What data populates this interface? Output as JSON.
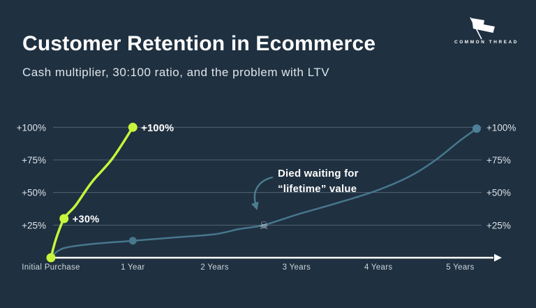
{
  "header": {
    "title": "Customer Retention in Ecommerce",
    "subtitle": "Cash multiplier, 30:100 ratio, and the problem with LTV",
    "logo_text": "COMMON THREAD"
  },
  "colors": {
    "background": "#1f3040",
    "title_text": "#ffffff",
    "subtitle_text": "#dfe5ea",
    "grid_line": "#a9bcc7",
    "axis_line": "#ffffff",
    "y_tick_label": "#dce3e9",
    "x_tick_label": "#ccd5dc",
    "series_cash_multiplier": "#c7f43c",
    "series_ltv": "#47778d",
    "ltv_end_dot": "#4d8098",
    "point_label": "#ffffff",
    "annotation_text": "#ffffff",
    "annotation_arrow": "#4c7e92",
    "skull": "#ccd6de"
  },
  "chart_data": {
    "type": "line",
    "title": "Customer Retention in Ecommerce",
    "subtitle": "Cash multiplier, 30:100 ratio, and the problem with LTV",
    "xlabel": "",
    "ylabel": "",
    "xlim": [
      0,
      5.5
    ],
    "ylim": [
      0,
      100
    ],
    "grid": true,
    "y_axis_sides": "both",
    "x_ticks": [
      {
        "label": "Initial Purchase",
        "x": 0
      },
      {
        "label": "1 Year",
        "x": 1
      },
      {
        "label": "2 Years",
        "x": 2
      },
      {
        "label": "3 Years",
        "x": 3
      },
      {
        "label": "4 Years",
        "x": 4
      },
      {
        "label": "5 Years",
        "x": 5
      }
    ],
    "y_ticks": [
      {
        "label": "+25%",
        "value": 25
      },
      {
        "label": "+50%",
        "value": 50
      },
      {
        "label": "+75%",
        "value": 75
      },
      {
        "label": "+100%",
        "value": 100
      }
    ],
    "series": [
      {
        "name": "ltv-slow-growth",
        "color_key": "series_ltv",
        "stroke_width": 2.5,
        "dot_radius": 5.5,
        "points": [
          {
            "x": 0,
            "y": 0
          },
          {
            "x": 0.08,
            "y": 5
          },
          {
            "x": 0.2,
            "y": 8
          },
          {
            "x": 0.5,
            "y": 10.5
          },
          {
            "x": 1,
            "y": 13
          },
          {
            "x": 1.5,
            "y": 15.5
          },
          {
            "x": 2,
            "y": 18
          },
          {
            "x": 2.3,
            "y": 22
          },
          {
            "x": 2.6,
            "y": 25
          },
          {
            "x": 3,
            "y": 33
          },
          {
            "x": 3.5,
            "y": 42
          },
          {
            "x": 4,
            "y": 52
          },
          {
            "x": 4.4,
            "y": 63
          },
          {
            "x": 4.7,
            "y": 75
          },
          {
            "x": 5,
            "y": 90
          },
          {
            "x": 5.2,
            "y": 99
          }
        ],
        "dots": [
          {
            "x": 1,
            "y": 13
          },
          {
            "x": 5.2,
            "y": 99,
            "color_key": "ltv_end_dot",
            "radius": 6
          }
        ],
        "labels": []
      },
      {
        "name": "cash-multiplier",
        "color_key": "series_cash_multiplier",
        "stroke_width": 3.5,
        "dot_radius": 6.5,
        "points": [
          {
            "x": 0,
            "y": 0
          },
          {
            "x": 0.06,
            "y": 14
          },
          {
            "x": 0.16,
            "y": 30
          },
          {
            "x": 0.3,
            "y": 40
          },
          {
            "x": 0.5,
            "y": 58
          },
          {
            "x": 0.75,
            "y": 76
          },
          {
            "x": 1,
            "y": 100
          }
        ],
        "dots": [
          {
            "x": 0,
            "y": 0
          },
          {
            "x": 0.16,
            "y": 30
          },
          {
            "x": 1,
            "y": 100
          }
        ],
        "labels": [
          {
            "text": "+30%",
            "x": 0.16,
            "y": 30
          },
          {
            "text": "+100%",
            "x": 1,
            "y": 100
          }
        ]
      }
    ],
    "annotation": {
      "line1": "Died waiting for",
      "line2": "“lifetime” value",
      "skull_icon": "☠",
      "skull_x": 2.6,
      "skull_y": 25
    }
  }
}
